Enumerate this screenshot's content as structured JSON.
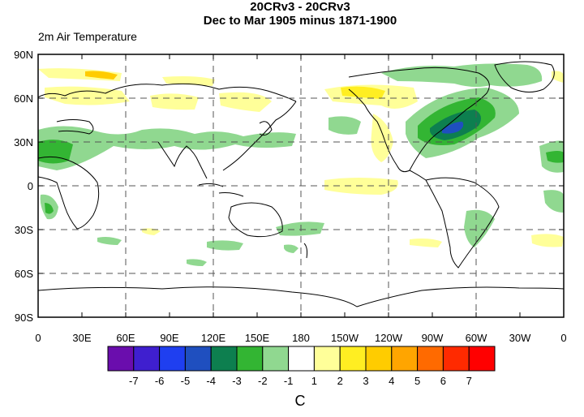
{
  "title_line1": "20CRv3 - 20CRv3",
  "title_line2": "Dec to Mar 1905 minus 1871-1900",
  "variable_label": "2m Air Temperature",
  "units": "C",
  "lat_ticks": [
    "90N",
    "60N",
    "30N",
    "0",
    "30S",
    "60S",
    "90S"
  ],
  "lon_ticks": [
    "0",
    "30E",
    "60E",
    "90E",
    "120E",
    "150E",
    "180",
    "150W",
    "120W",
    "90W",
    "60W",
    "30W",
    "0"
  ],
  "colorbar": {
    "labels": [
      "-7",
      "-6",
      "-5",
      "-4",
      "-3",
      "-2",
      "-1",
      "1",
      "2",
      "3",
      "4",
      "5",
      "6",
      "7"
    ],
    "colors": [
      "#6a0dad",
      "#3f1fcf",
      "#1f3ff0",
      "#1f4fbf",
      "#0d7f4f",
      "#33b533",
      "#90d890",
      "#ffffff",
      "#ffff99",
      "#ffee22",
      "#ffcc00",
      "#ffa500",
      "#ff6a00",
      "#ff2a00",
      "#ff0000"
    ]
  }
}
